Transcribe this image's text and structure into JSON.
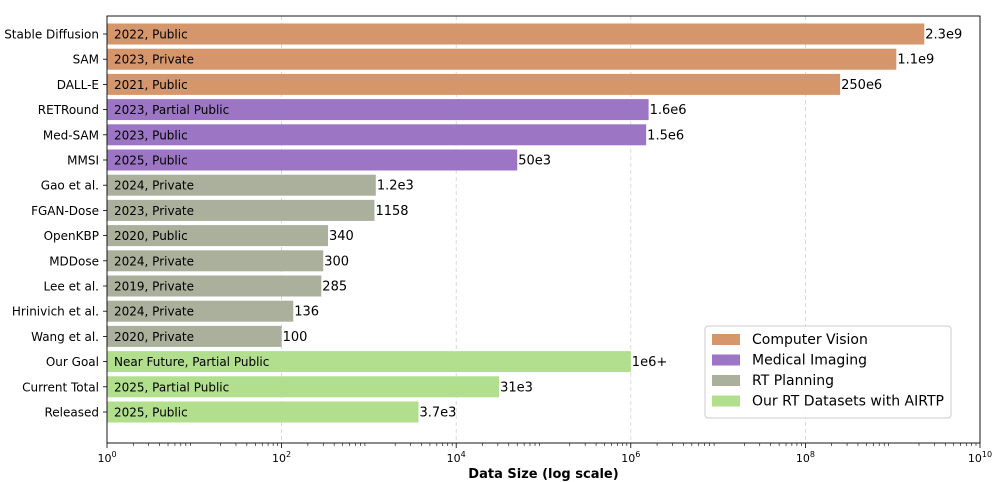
{
  "chart_data": {
    "type": "bar",
    "orientation": "horizontal",
    "title": "",
    "xlabel": "Data Size (log scale)",
    "ylabel": "",
    "x_scale": "log",
    "xlim": [
      1,
      10000000000
    ],
    "x_ticks": [
      {
        "base": "10",
        "exp": "0",
        "value": 1
      },
      {
        "base": "10",
        "exp": "2",
        "value": 100
      },
      {
        "base": "10",
        "exp": "4",
        "value": 10000
      },
      {
        "base": "10",
        "exp": "6",
        "value": 1000000
      },
      {
        "base": "10",
        "exp": "8",
        "value": 100000000
      },
      {
        "base": "10",
        "exp": "10",
        "value": 10000000000
      }
    ],
    "grid": "x-dashed",
    "legend_position": "lower-right",
    "groups": [
      {
        "name": "Computer Vision",
        "color": "#d6966c"
      },
      {
        "name": "Medical Imaging",
        "color": "#9c76c4"
      },
      {
        "name": "RT Planning",
        "color": "#abb09c"
      },
      {
        "name": "Our RT Datasets with AIRTP",
        "color": "#b2df8e"
      }
    ],
    "bars": [
      {
        "label": "Stable Diffusion",
        "value": 2300000000,
        "value_label": "2.3e9",
        "annotation": "2022, Public",
        "group": 0
      },
      {
        "label": "SAM",
        "value": 1100000000,
        "value_label": "1.1e9",
        "annotation": "2023, Private",
        "group": 0
      },
      {
        "label": "DALL-E",
        "value": 250000000,
        "value_label": "250e6",
        "annotation": "2021, Public",
        "group": 0
      },
      {
        "label": "RETRound",
        "value": 1600000,
        "value_label": "1.6e6",
        "annotation": "2023, Partial Public",
        "group": 1
      },
      {
        "label": "Med-SAM",
        "value": 1500000,
        "value_label": "1.5e6",
        "annotation": "2023, Public",
        "group": 1
      },
      {
        "label": "MMSI",
        "value": 50000,
        "value_label": "50e3",
        "annotation": "2025, Public",
        "group": 1
      },
      {
        "label": "Gao et al.",
        "value": 1200,
        "value_label": "1.2e3",
        "annotation": "2024, Private",
        "group": 2
      },
      {
        "label": "FGAN-Dose",
        "value": 1158,
        "value_label": "1158",
        "annotation": "2023, Private",
        "group": 2
      },
      {
        "label": "OpenKBP",
        "value": 340,
        "value_label": "340",
        "annotation": "2020, Public",
        "group": 2
      },
      {
        "label": "MDDose",
        "value": 300,
        "value_label": "300",
        "annotation": "2024, Private",
        "group": 2
      },
      {
        "label": "Lee et al.",
        "value": 285,
        "value_label": "285",
        "annotation": "2019, Private",
        "group": 2
      },
      {
        "label": "Hrinivich et al.",
        "value": 136,
        "value_label": "136",
        "annotation": "2024, Private",
        "group": 2
      },
      {
        "label": "Wang et al.",
        "value": 100,
        "value_label": "100",
        "annotation": "2020, Private",
        "group": 2
      },
      {
        "label": "Our Goal",
        "value": 1000000,
        "value_label": "1e6+",
        "annotation": "Near Future, Partial Public",
        "group": 3
      },
      {
        "label": "Current Total",
        "value": 31000,
        "value_label": "31e3",
        "annotation": "2025, Partial Public",
        "group": 3
      },
      {
        "label": "Released",
        "value": 3700,
        "value_label": "3.7e3",
        "annotation": "2025, Public",
        "group": 3
      }
    ]
  }
}
